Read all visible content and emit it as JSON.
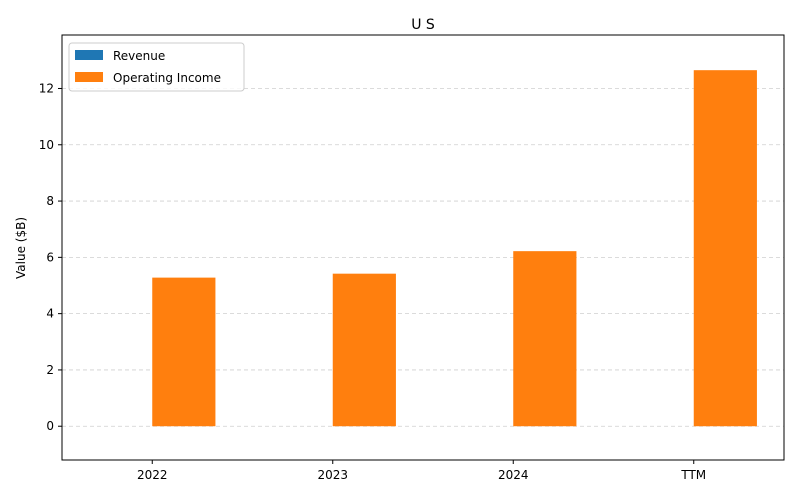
{
  "chart_data": {
    "type": "bar",
    "title": "U S",
    "xlabel": "",
    "ylabel": "Value ($B)",
    "categories": [
      "2022",
      "2023",
      "2024",
      "TTM"
    ],
    "series": [
      {
        "name": "Revenue",
        "color": "#1f77b4",
        "values": [
          0,
          0,
          0,
          0
        ]
      },
      {
        "name": "Operating Income",
        "color": "#ff7f0e",
        "values": [
          5.28,
          5.42,
          6.22,
          12.65
        ]
      }
    ],
    "ylim": [
      -1.2,
      13.9
    ],
    "yticks": [
      0,
      2,
      4,
      6,
      8,
      10,
      12
    ],
    "grid": "y-dashed",
    "legend_position": "top-left"
  }
}
